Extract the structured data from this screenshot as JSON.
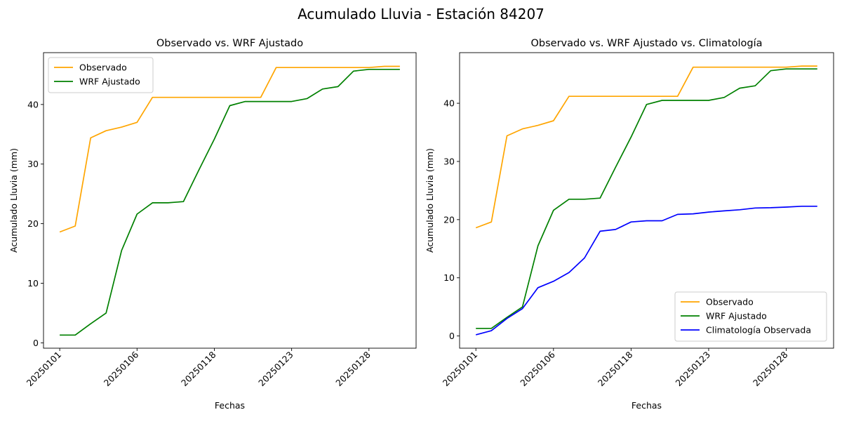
{
  "figure": {
    "title": "Acumulado Lluvia - Estación 84207"
  },
  "chart_data": [
    {
      "type": "line",
      "title": "Observado vs. WRF Ajustado",
      "xlabel": "Fechas",
      "ylabel": "Acumulado Lluvia (mm)",
      "x_tick_labels": [
        "20250101",
        "20250106",
        "20250118",
        "20250123",
        "20250128"
      ],
      "x_tick_index": [
        0,
        5,
        10,
        15,
        20
      ],
      "y_ticks": [
        0,
        10,
        20,
        30,
        40
      ],
      "ylim": [
        -0.9,
        48.7
      ],
      "legend_position": "upper-left",
      "series": [
        {
          "name": "Observado",
          "color": "#FFA500",
          "values": [
            18.6,
            19.6,
            34.4,
            35.6,
            36.2,
            37.0,
            41.2,
            41.2,
            41.2,
            41.2,
            41.2,
            41.2,
            41.2,
            41.2,
            46.2,
            46.2,
            46.2,
            46.2,
            46.2,
            46.2,
            46.2,
            46.4,
            46.4
          ]
        },
        {
          "name": "WRF Ajustado",
          "color": "#008000",
          "values": [
            1.3,
            1.3,
            3.2,
            5.0,
            15.5,
            21.6,
            23.5,
            23.5,
            23.7,
            29.0,
            34.2,
            39.8,
            40.5,
            40.5,
            40.5,
            40.5,
            41.0,
            42.6,
            43.0,
            45.6,
            45.9,
            45.9,
            45.9
          ]
        }
      ]
    },
    {
      "type": "line",
      "title": "Observado vs. WRF Ajustado vs. Climatología",
      "xlabel": "Fechas",
      "ylabel": "Acumulado Lluvia (mm)",
      "x_tick_labels": [
        "20250101",
        "20250106",
        "20250118",
        "20250123",
        "20250128"
      ],
      "x_tick_index": [
        0,
        5,
        10,
        15,
        20
      ],
      "y_ticks": [
        0,
        10,
        20,
        30,
        40
      ],
      "ylim": [
        -2.1,
        48.7
      ],
      "legend_position": "lower-right",
      "series": [
        {
          "name": "Observado",
          "color": "#FFA500",
          "values": [
            18.6,
            19.6,
            34.4,
            35.6,
            36.2,
            37.0,
            41.2,
            41.2,
            41.2,
            41.2,
            41.2,
            41.2,
            41.2,
            41.2,
            46.2,
            46.2,
            46.2,
            46.2,
            46.2,
            46.2,
            46.2,
            46.4,
            46.4
          ]
        },
        {
          "name": "WRF Ajustado",
          "color": "#008000",
          "values": [
            1.3,
            1.3,
            3.2,
            5.0,
            15.5,
            21.6,
            23.5,
            23.5,
            23.7,
            29.0,
            34.2,
            39.8,
            40.5,
            40.5,
            40.5,
            40.5,
            41.0,
            42.6,
            43.0,
            45.6,
            45.9,
            45.9,
            45.9
          ]
        },
        {
          "name": "Climatología Observada",
          "color": "#0000FF",
          "values": [
            0.2,
            0.9,
            3.0,
            4.7,
            8.3,
            9.4,
            10.9,
            13.4,
            18.0,
            18.3,
            19.6,
            19.8,
            19.8,
            20.9,
            21.0,
            21.3,
            21.5,
            21.7,
            22.0,
            22.05,
            22.15,
            22.3,
            22.3
          ]
        }
      ]
    }
  ]
}
